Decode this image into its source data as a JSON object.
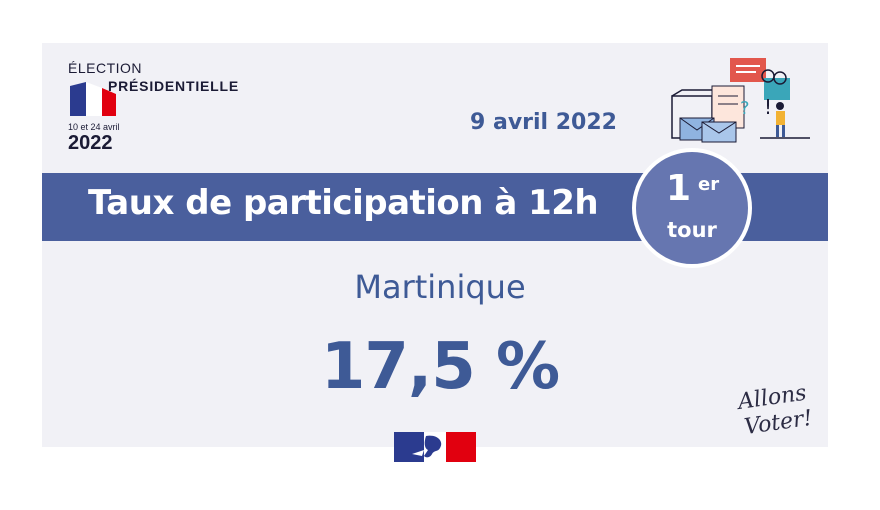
{
  "logo": {
    "line1": "ÉLECTION",
    "line2": "PRÉSIDENTIELLE",
    "dates": "10 et 24 avril",
    "year": "2022",
    "flag_colors": [
      "#2b3b8f",
      "#ffffff",
      "#e1000f"
    ]
  },
  "date": "9 avril 2022",
  "banner": {
    "title": "Taux de participation à 12h",
    "color": "#4a5f9d"
  },
  "round": {
    "number": "1",
    "suffix": "er",
    "word": "tour",
    "color": "#6676b0"
  },
  "region": "Martinique",
  "rate": "17,5 %",
  "slogan": "Allons Voter!",
  "accent_color": "#3e5a96",
  "illustration": "ballot-box-voter-illustration",
  "government_logo": "marianne-logo"
}
